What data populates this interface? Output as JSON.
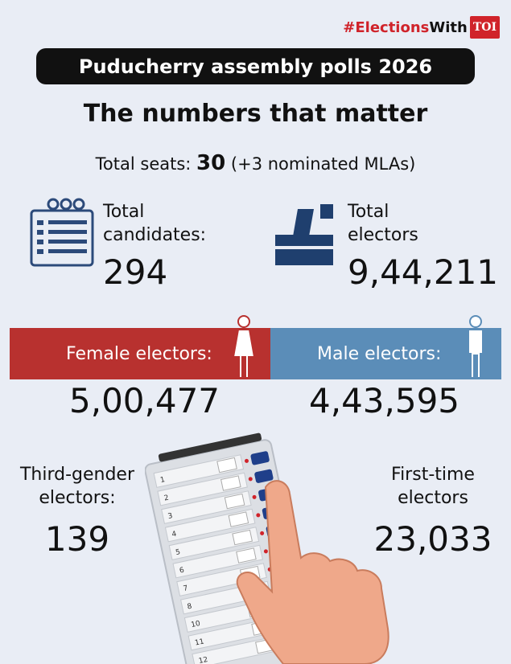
{
  "hashtag": {
    "prefix": "#Elections",
    "suffix": "With",
    "logo": "TOI"
  },
  "banner": "Puducherry assembly polls 2026",
  "title": "The numbers that matter",
  "seats": {
    "label": "Total seats:",
    "value": "30",
    "note": "(+3 nominated MLAs)"
  },
  "candidates": {
    "label": "Total candidates:",
    "value": "294"
  },
  "electors": {
    "label": "Total electors",
    "value": "9,44,211"
  },
  "female": {
    "label": "Female electors:",
    "value": "5,00,477"
  },
  "male": {
    "label": "Male electors:",
    "value": "4,43,595"
  },
  "third_gender": {
    "label": "Third-gender electors:",
    "value": "139"
  },
  "first_time": {
    "label": "First-time electors",
    "value": "23,033"
  },
  "evm_buttons": [
    "1",
    "2",
    "3",
    "4",
    "5",
    "6",
    "7",
    "8",
    "10",
    "11",
    "12"
  ]
}
